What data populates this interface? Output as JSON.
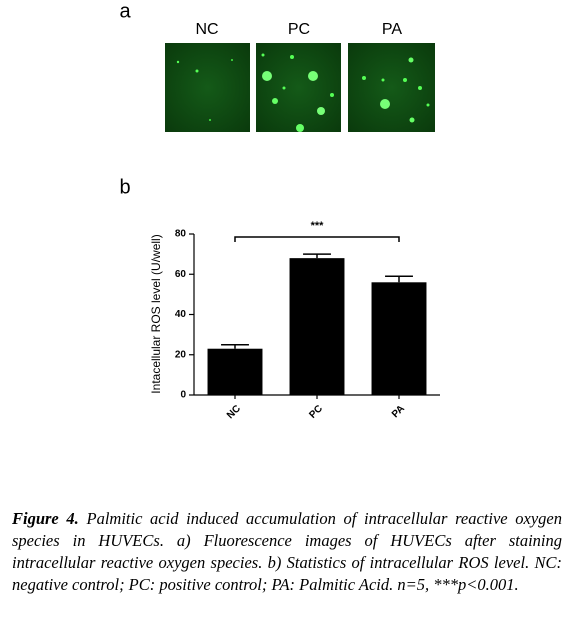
{
  "panel_a": {
    "label": "a",
    "images": [
      "NC",
      "PC",
      "PA"
    ]
  },
  "panel_b": {
    "label": "b"
  },
  "chart_data": {
    "type": "bar",
    "ylabel": "Intacellular ROS level (U/well)",
    "categories": [
      "NC",
      "PC",
      "PA"
    ],
    "values": [
      23,
      68,
      56
    ],
    "errors": [
      2,
      2,
      3
    ],
    "color": "#000000",
    "ylim": [
      0,
      80
    ],
    "yticks": [
      0,
      20,
      40,
      60,
      80
    ],
    "annotation": "***"
  },
  "caption": {
    "label": "Figure 4.",
    "text": "Palmitic acid induced accumulation of intracellular reactive oxygen species in HUVECs. a) Fluorescence images of HUVECs after staining intracellular reactive oxygen species. b) Statistics of intracellular ROS level. NC: negative control; PC: positive control; PA: Palmitic Acid. n=5, ***p<0.001."
  }
}
